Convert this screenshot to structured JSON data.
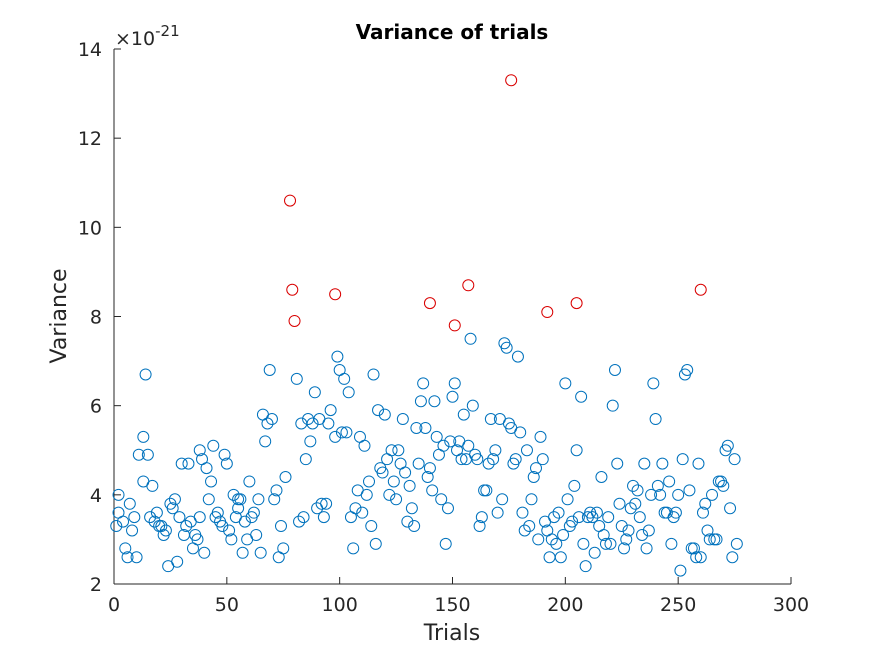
{
  "chart_data": {
    "type": "scatter",
    "title": "Variance of trials",
    "xlabel": "Trials",
    "ylabel": "Variance",
    "xlim": [
      0,
      300
    ],
    "ylim": [
      2,
      14
    ],
    "xticks": [
      0,
      50,
      100,
      150,
      200,
      250,
      300
    ],
    "yticks": [
      2,
      4,
      6,
      8,
      10,
      12,
      14
    ],
    "y_exponent_label": "×10",
    "y_exponent_power": "-21",
    "grid": false,
    "colors": {
      "normal": "#0072BD",
      "outlier": "#D90000"
    },
    "series": [
      {
        "key": "normal",
        "points": [
          [
            1,
            3.3
          ],
          [
            2,
            4.0
          ],
          [
            2,
            3.6
          ],
          [
            4,
            3.4
          ],
          [
            5,
            2.8
          ],
          [
            6,
            2.6
          ],
          [
            7,
            3.8
          ],
          [
            8,
            3.2
          ],
          [
            9,
            3.5
          ],
          [
            10,
            2.6
          ],
          [
            11,
            4.9
          ],
          [
            13,
            4.3
          ],
          [
            13,
            5.3
          ],
          [
            14,
            6.7
          ],
          [
            15,
            4.9
          ],
          [
            16,
            3.5
          ],
          [
            17,
            4.2
          ],
          [
            18,
            3.4
          ],
          [
            19,
            3.6
          ],
          [
            20,
            3.3
          ],
          [
            21,
            3.3
          ],
          [
            22,
            3.1
          ],
          [
            23,
            3.2
          ],
          [
            24,
            2.4
          ],
          [
            25,
            3.8
          ],
          [
            26,
            3.7
          ],
          [
            27,
            3.9
          ],
          [
            28,
            2.5
          ],
          [
            29,
            3.5
          ],
          [
            30,
            4.7
          ],
          [
            31,
            3.1
          ],
          [
            32,
            3.3
          ],
          [
            33,
            4.7
          ],
          [
            34,
            3.4
          ],
          [
            35,
            2.8
          ],
          [
            36,
            3.1
          ],
          [
            37,
            3.0
          ],
          [
            38,
            3.5
          ],
          [
            38,
            5.0
          ],
          [
            39,
            4.8
          ],
          [
            40,
            2.7
          ],
          [
            41,
            4.6
          ],
          [
            42,
            3.9
          ],
          [
            43,
            4.3
          ],
          [
            44,
            5.1
          ],
          [
            45,
            3.5
          ],
          [
            46,
            3.6
          ],
          [
            47,
            3.4
          ],
          [
            48,
            3.3
          ],
          [
            49,
            4.9
          ],
          [
            50,
            4.7
          ],
          [
            51,
            3.2
          ],
          [
            52,
            3.0
          ],
          [
            53,
            4.0
          ],
          [
            54,
            3.5
          ],
          [
            55,
            3.7
          ],
          [
            55,
            3.9
          ],
          [
            56,
            3.9
          ],
          [
            57,
            2.7
          ],
          [
            58,
            3.4
          ],
          [
            59,
            3.0
          ],
          [
            60,
            4.3
          ],
          [
            61,
            3.5
          ],
          [
            62,
            3.6
          ],
          [
            63,
            3.1
          ],
          [
            64,
            3.9
          ],
          [
            65,
            2.7
          ],
          [
            66,
            5.8
          ],
          [
            67,
            5.2
          ],
          [
            68,
            5.6
          ],
          [
            69,
            6.8
          ],
          [
            70,
            5.7
          ],
          [
            71,
            3.9
          ],
          [
            72,
            4.1
          ],
          [
            73,
            2.6
          ],
          [
            74,
            3.3
          ],
          [
            75,
            2.8
          ],
          [
            76,
            4.4
          ],
          [
            81,
            6.6
          ],
          [
            82,
            3.4
          ],
          [
            83,
            5.6
          ],
          [
            84,
            3.5
          ],
          [
            85,
            4.8
          ],
          [
            86,
            5.7
          ],
          [
            87,
            5.2
          ],
          [
            88,
            5.6
          ],
          [
            89,
            6.3
          ],
          [
            90,
            3.7
          ],
          [
            91,
            5.7
          ],
          [
            92,
            3.8
          ],
          [
            93,
            3.5
          ],
          [
            94,
            3.8
          ],
          [
            95,
            5.6
          ],
          [
            96,
            5.9
          ],
          [
            98,
            5.3
          ],
          [
            99,
            7.1
          ],
          [
            100,
            6.8
          ],
          [
            101,
            5.4
          ],
          [
            102,
            6.6
          ],
          [
            103,
            5.4
          ],
          [
            104,
            6.3
          ],
          [
            105,
            3.5
          ],
          [
            106,
            2.8
          ],
          [
            107,
            3.7
          ],
          [
            108,
            4.1
          ],
          [
            109,
            5.3
          ],
          [
            110,
            3.6
          ],
          [
            111,
            5.1
          ],
          [
            112,
            4.0
          ],
          [
            113,
            4.3
          ],
          [
            114,
            3.3
          ],
          [
            115,
            6.7
          ],
          [
            116,
            2.9
          ],
          [
            117,
            5.9
          ],
          [
            118,
            4.6
          ],
          [
            119,
            4.5
          ],
          [
            120,
            5.8
          ],
          [
            121,
            4.8
          ],
          [
            122,
            4.0
          ],
          [
            123,
            5.0
          ],
          [
            124,
            4.3
          ],
          [
            125,
            3.9
          ],
          [
            126,
            5.0
          ],
          [
            127,
            4.7
          ],
          [
            128,
            5.7
          ],
          [
            129,
            4.5
          ],
          [
            130,
            3.4
          ],
          [
            131,
            4.2
          ],
          [
            132,
            3.7
          ],
          [
            133,
            3.3
          ],
          [
            134,
            5.5
          ],
          [
            135,
            4.7
          ],
          [
            136,
            6.1
          ],
          [
            137,
            6.5
          ],
          [
            138,
            5.5
          ],
          [
            139,
            4.4
          ],
          [
            140,
            4.6
          ],
          [
            141,
            4.1
          ],
          [
            142,
            6.1
          ],
          [
            143,
            5.3
          ],
          [
            144,
            4.9
          ],
          [
            145,
            3.9
          ],
          [
            146,
            5.1
          ],
          [
            147,
            2.9
          ],
          [
            148,
            3.7
          ],
          [
            149,
            5.2
          ],
          [
            150,
            6.2
          ],
          [
            151,
            6.5
          ],
          [
            152,
            5.0
          ],
          [
            153,
            5.2
          ],
          [
            154,
            4.8
          ],
          [
            155,
            5.8
          ],
          [
            156,
            4.8
          ],
          [
            157,
            5.1
          ],
          [
            158,
            7.5
          ],
          [
            159,
            6.0
          ],
          [
            160,
            4.9
          ],
          [
            161,
            4.8
          ],
          [
            162,
            3.3
          ],
          [
            163,
            3.5
          ],
          [
            164,
            4.1
          ],
          [
            165,
            4.1
          ],
          [
            166,
            4.7
          ],
          [
            167,
            5.7
          ],
          [
            168,
            4.8
          ],
          [
            169,
            5.0
          ],
          [
            170,
            3.6
          ],
          [
            171,
            5.7
          ],
          [
            172,
            3.9
          ],
          [
            173,
            7.4
          ],
          [
            174,
            7.3
          ],
          [
            175,
            5.6
          ],
          [
            176,
            5.5
          ],
          [
            177,
            4.7
          ],
          [
            178,
            4.8
          ],
          [
            179,
            7.1
          ],
          [
            180,
            5.4
          ],
          [
            181,
            3.6
          ],
          [
            182,
            3.2
          ],
          [
            183,
            5.0
          ],
          [
            184,
            3.3
          ],
          [
            185,
            3.9
          ],
          [
            186,
            4.4
          ],
          [
            187,
            4.6
          ],
          [
            188,
            3.0
          ],
          [
            189,
            5.3
          ],
          [
            190,
            4.8
          ],
          [
            191,
            3.4
          ],
          [
            192,
            3.2
          ],
          [
            193,
            2.6
          ],
          [
            194,
            3.0
          ],
          [
            195,
            3.5
          ],
          [
            196,
            2.9
          ],
          [
            197,
            3.6
          ],
          [
            198,
            2.6
          ],
          [
            199,
            3.1
          ],
          [
            200,
            6.5
          ],
          [
            201,
            3.9
          ],
          [
            202,
            3.3
          ],
          [
            203,
            3.4
          ],
          [
            204,
            4.2
          ],
          [
            205,
            5.0
          ],
          [
            206,
            3.5
          ],
          [
            207,
            6.2
          ],
          [
            208,
            2.9
          ],
          [
            209,
            2.4
          ],
          [
            210,
            3.5
          ],
          [
            211,
            3.6
          ],
          [
            212,
            3.5
          ],
          [
            213,
            2.7
          ],
          [
            214,
            3.6
          ],
          [
            215,
            3.3
          ],
          [
            216,
            4.4
          ],
          [
            217,
            3.1
          ],
          [
            218,
            2.9
          ],
          [
            219,
            3.5
          ],
          [
            220,
            2.9
          ],
          [
            221,
            6.0
          ],
          [
            222,
            6.8
          ],
          [
            223,
            4.7
          ],
          [
            224,
            3.8
          ],
          [
            225,
            3.3
          ],
          [
            226,
            2.8
          ],
          [
            227,
            3.0
          ],
          [
            228,
            3.2
          ],
          [
            229,
            3.7
          ],
          [
            230,
            4.2
          ],
          [
            231,
            3.8
          ],
          [
            232,
            4.1
          ],
          [
            233,
            3.5
          ],
          [
            234,
            3.1
          ],
          [
            235,
            4.7
          ],
          [
            236,
            2.8
          ],
          [
            237,
            3.2
          ],
          [
            238,
            4.0
          ],
          [
            239,
            6.5
          ],
          [
            240,
            5.7
          ],
          [
            241,
            4.2
          ],
          [
            242,
            4.0
          ],
          [
            243,
            4.7
          ],
          [
            244,
            3.6
          ],
          [
            245,
            3.6
          ],
          [
            246,
            4.3
          ],
          [
            247,
            2.9
          ],
          [
            248,
            3.5
          ],
          [
            249,
            3.6
          ],
          [
            250,
            4.0
          ],
          [
            251,
            2.3
          ],
          [
            252,
            4.8
          ],
          [
            253,
            6.7
          ],
          [
            254,
            6.8
          ],
          [
            255,
            4.1
          ],
          [
            256,
            2.8
          ],
          [
            257,
            2.8
          ],
          [
            258,
            2.6
          ],
          [
            259,
            4.7
          ],
          [
            260,
            2.6
          ],
          [
            261,
            3.6
          ],
          [
            262,
            3.8
          ],
          [
            263,
            3.2
          ],
          [
            264,
            3.0
          ],
          [
            265,
            4.0
          ],
          [
            266,
            3.0
          ],
          [
            267,
            3.0
          ],
          [
            268,
            4.3
          ],
          [
            269,
            4.3
          ],
          [
            270,
            4.2
          ],
          [
            271,
            5.0
          ],
          [
            272,
            5.1
          ],
          [
            273,
            3.7
          ],
          [
            274,
            2.6
          ],
          [
            275,
            4.8
          ],
          [
            276,
            2.9
          ]
        ]
      },
      {
        "key": "outlier",
        "points": [
          [
            78,
            10.6
          ],
          [
            79,
            8.6
          ],
          [
            80,
            7.9
          ],
          [
            98,
            8.5
          ],
          [
            140,
            8.3
          ],
          [
            151,
            7.8
          ],
          [
            157,
            8.7
          ],
          [
            176,
            13.3
          ],
          [
            192,
            8.1
          ],
          [
            205,
            8.3
          ],
          [
            260,
            8.6
          ]
        ]
      }
    ]
  }
}
